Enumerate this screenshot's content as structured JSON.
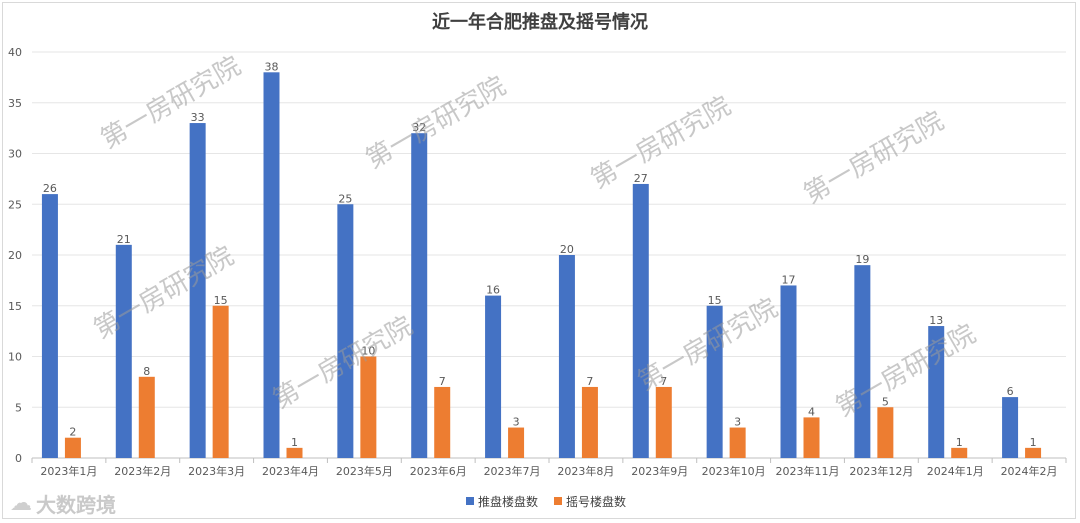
{
  "chart_data": {
    "type": "bar",
    "title": "近一年合肥推盘及摇号情况",
    "categories": [
      "2023年1月",
      "2023年2月",
      "2023年3月",
      "2023年4月",
      "2023年5月",
      "2023年6月",
      "2023年7月",
      "2023年8月",
      "2023年9月",
      "2023年10月",
      "2023年11月",
      "2023年12月",
      "2024年1月",
      "2024年2月"
    ],
    "series": [
      {
        "name": "推盘楼盘数",
        "color": "#4472C4",
        "values": [
          26,
          21,
          33,
          38,
          25,
          32,
          16,
          20,
          27,
          15,
          17,
          19,
          13,
          6
        ]
      },
      {
        "name": "摇号楼盘数",
        "color": "#ED7D31",
        "values": [
          2,
          8,
          15,
          1,
          10,
          7,
          3,
          7,
          7,
          3,
          4,
          5,
          1,
          1
        ]
      }
    ],
    "ylim": [
      0,
      40
    ],
    "yticks": [
      0,
      5,
      10,
      15,
      20,
      25,
      30,
      35,
      40
    ],
    "grid": true,
    "legend_position": "bottom",
    "data_labels": true
  },
  "watermark": "第一房研究院",
  "brand": {
    "text": "大数跨境",
    "icon": "cloud-logo-icon"
  }
}
